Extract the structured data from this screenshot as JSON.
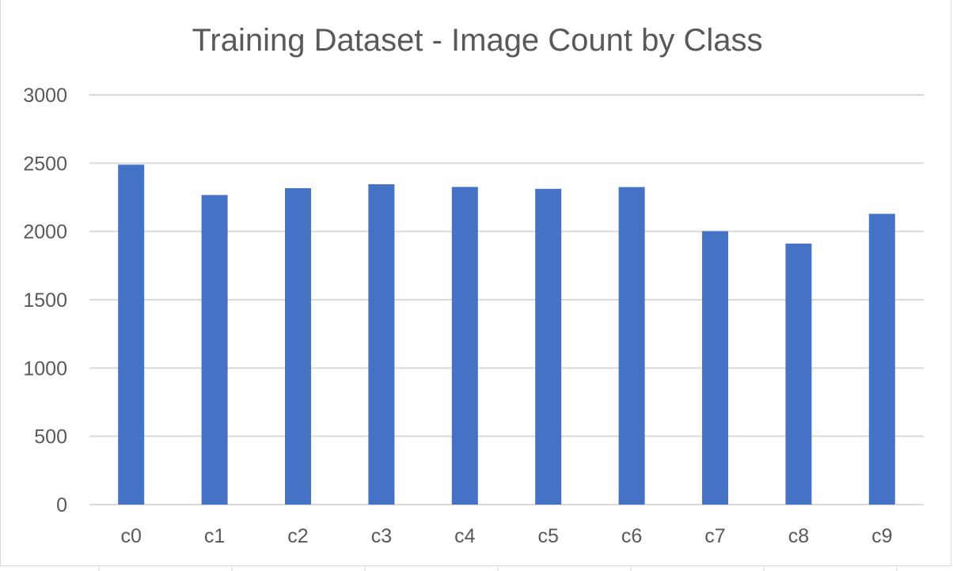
{
  "chart_data": {
    "type": "bar",
    "title": "Training Dataset - Image Count by Class",
    "xlabel": "",
    "ylabel": "",
    "categories": [
      "c0",
      "c1",
      "c2",
      "c3",
      "c4",
      "c5",
      "c6",
      "c7",
      "c8",
      "c9"
    ],
    "values": [
      2489,
      2267,
      2317,
      2346,
      2326,
      2312,
      2325,
      2002,
      1911,
      2129
    ],
    "ylim": [
      0,
      3000
    ],
    "yticks": [
      "0",
      "500",
      "1000",
      "1500",
      "2000",
      "2500",
      "3000"
    ],
    "grid": true,
    "legend": "none"
  },
  "colors": {
    "bar": "#4472c4",
    "gridline": "#d9d9d9",
    "text": "#595959"
  }
}
